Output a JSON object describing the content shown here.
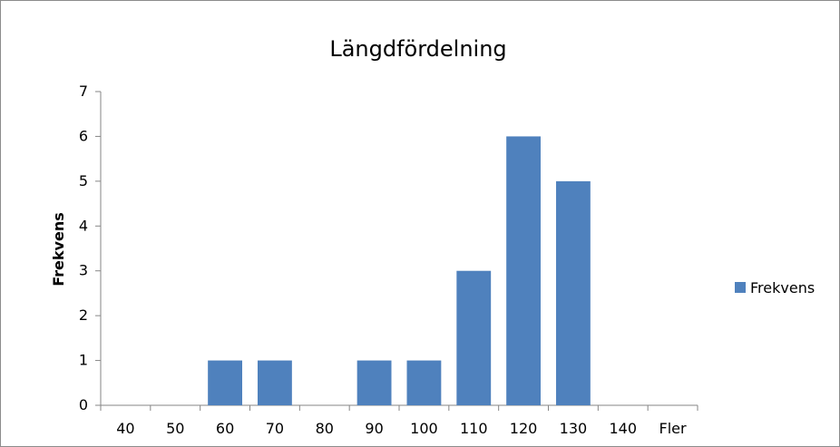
{
  "chart_data": {
    "type": "bar",
    "title": "Längdfördelning",
    "xlabel": "",
    "ylabel": "Frekvens",
    "categories": [
      "40",
      "50",
      "60",
      "70",
      "80",
      "90",
      "100",
      "110",
      "120",
      "130",
      "140",
      "Fler"
    ],
    "series": [
      {
        "name": "Frekvens",
        "values": [
          0,
          0,
          1,
          1,
          0,
          1,
          1,
          3,
          6,
          5,
          0,
          0
        ],
        "color": "#4f81bd"
      }
    ],
    "ylim": [
      0,
      7
    ],
    "yticks": [
      "0",
      "1",
      "2",
      "3",
      "4",
      "5",
      "6",
      "7"
    ],
    "grid": false,
    "legend_position": "right"
  }
}
